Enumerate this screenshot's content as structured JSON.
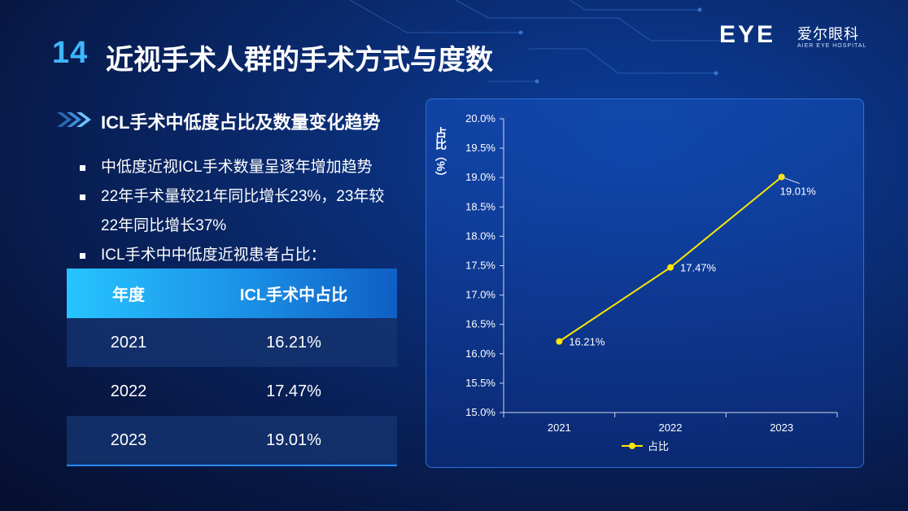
{
  "header": {
    "number": "14",
    "title": "近视手术人群的手术方式与度数"
  },
  "logo": {
    "mark": "EYE",
    "name_cn": "爱尔眼科",
    "name_en": "AIER EYE HOSPITAL"
  },
  "section": {
    "subtitle": "ICL手术中低度占比及数量变化趋势"
  },
  "bullets": [
    "中低度近视ICL手术数量呈逐年增加趋势",
    "22年手术量较21年同比增长23%，23年较",
    "22年同比增长37%",
    "ICL手术中中低度近视患者占比："
  ],
  "table": {
    "headers": [
      "年度",
      "ICL手术中占比"
    ],
    "rows": [
      [
        "2021",
        "16.21%"
      ],
      [
        "2022",
        "17.47%"
      ],
      [
        "2023",
        "19.01%"
      ]
    ]
  },
  "chart_data": {
    "type": "line",
    "categories": [
      "2021",
      "2022",
      "2023"
    ],
    "series": [
      {
        "name": "占比",
        "values": [
          16.21,
          17.47,
          19.01
        ]
      }
    ],
    "data_labels": [
      "16.21%",
      "17.47%",
      "19.01%"
    ],
    "ylabel": "占比（%）",
    "ylim": [
      15.0,
      20.0
    ],
    "yticks": [
      "15.0%",
      "15.5%",
      "16.0%",
      "16.5%",
      "17.0%",
      "17.5%",
      "18.0%",
      "18.5%",
      "19.0%",
      "19.5%",
      "20.0%"
    ],
    "ystep": 0.5,
    "line_color": "#ffe600",
    "legend_position": "bottom",
    "grid": false
  },
  "colors": {
    "accent": "#3fb7ff",
    "background": "#0a2a6e",
    "table_header": "#27c4ff"
  }
}
